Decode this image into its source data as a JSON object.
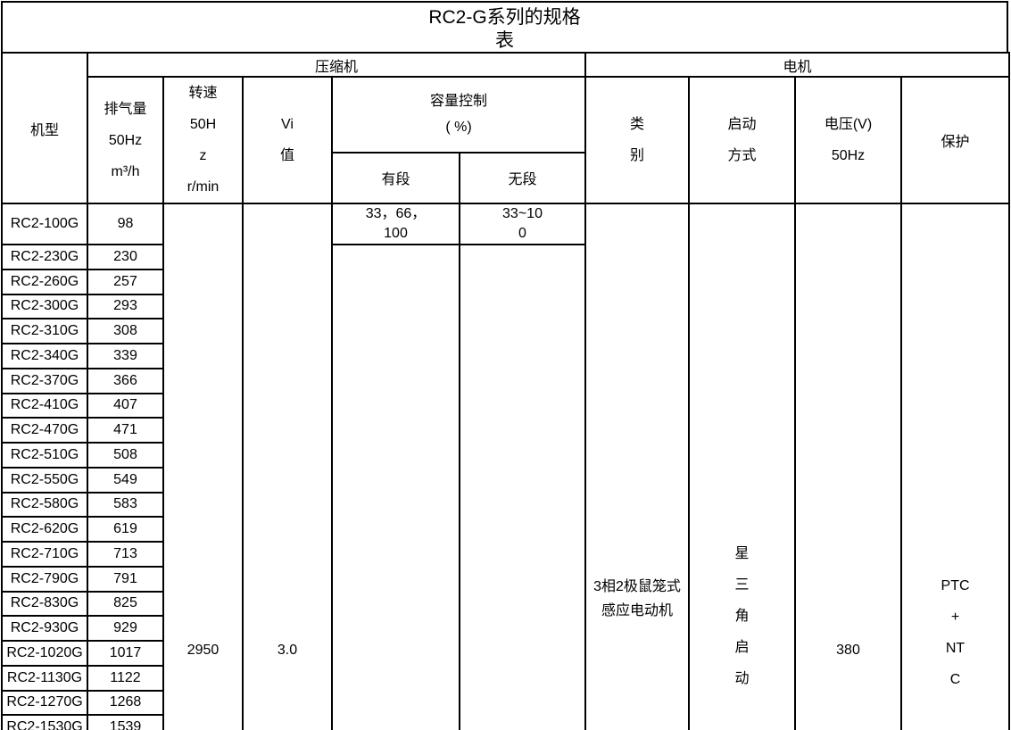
{
  "title_lines": [
    "RC2-G系列的规格",
    "表"
  ],
  "groups": {
    "compressor": "压缩机",
    "motor": "电机"
  },
  "columns": {
    "model": "机型",
    "displacement_lines": [
      "排气量",
      "50Hz",
      "m³/h"
    ],
    "speed_lines": [
      "转速",
      "50H",
      "z",
      "r/min"
    ],
    "vi_lines": [
      "Vi",
      "值"
    ],
    "capacity_lines": [
      "容量控制",
      "( %)"
    ],
    "capacity_stepped": "有段",
    "capacity_stepless": "无段",
    "type_lines": [
      "类",
      "别"
    ],
    "start_lines": [
      "启动",
      "方式"
    ],
    "voltage_lines": [
      "电压(V)",
      "50Hz"
    ],
    "protection": "保护"
  },
  "rows": [
    {
      "model": "RC2-100G",
      "displacement": "98"
    },
    {
      "model": "RC2-230G",
      "displacement": "230"
    },
    {
      "model": "RC2-260G",
      "displacement": "257"
    },
    {
      "model": "RC2-300G",
      "displacement": "293"
    },
    {
      "model": "RC2-310G",
      "displacement": "308"
    },
    {
      "model": "RC2-340G",
      "displacement": "339"
    },
    {
      "model": "RC2-370G",
      "displacement": "366"
    },
    {
      "model": "RC2-410G",
      "displacement": "407"
    },
    {
      "model": "RC2-470G",
      "displacement": "471"
    },
    {
      "model": "RC2-510G",
      "displacement": "508"
    },
    {
      "model": "RC2-550G",
      "displacement": "549"
    },
    {
      "model": "RC2-580G",
      "displacement": "583"
    },
    {
      "model": "RC2-620G",
      "displacement": "619"
    },
    {
      "model": "RC2-710G",
      "displacement": "713"
    },
    {
      "model": "RC2-790G",
      "displacement": "791"
    },
    {
      "model": "RC2-830G",
      "displacement": "825"
    },
    {
      "model": "RC2-930G",
      "displacement": "929"
    },
    {
      "model": "RC2-1020G",
      "displacement": "1017"
    },
    {
      "model": "RC2-1130G",
      "displacement": "1122"
    },
    {
      "model": "RC2-1270G",
      "displacement": "1268"
    },
    {
      "model": "RC2-1530G",
      "displacement": "1539"
    }
  ],
  "merged": {
    "speed": "2950",
    "vi": "3.0",
    "capacity_stepped_lines": [
      "33，66，",
      "100"
    ],
    "capacity_stepless_lines": [
      "33~10",
      "0"
    ],
    "motor_type_lines": [
      "3相2极鼠笼式",
      "感应电动机"
    ],
    "start_mode_lines": [
      "星",
      "三",
      "角",
      "启",
      "动"
    ],
    "voltage": "380",
    "protection_lines": [
      "PTC",
      "+",
      "NT",
      "C"
    ]
  },
  "colors": {
    "border": "#000000",
    "background": "#ffffff",
    "text": "#000000"
  }
}
